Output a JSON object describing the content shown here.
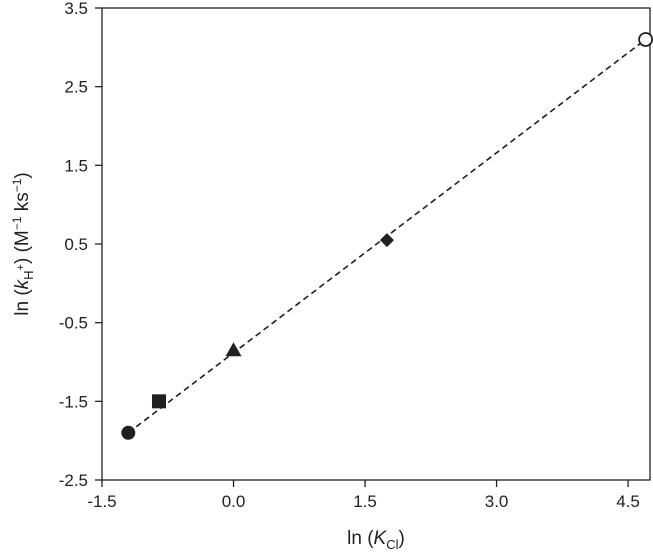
{
  "chart_data": {
    "type": "scatter",
    "title": "",
    "xlabel": {
      "prefix": "ln (",
      "var": "K",
      "sub": "Cl",
      "suffix": ")"
    },
    "ylabel": {
      "prefix": "ln (",
      "var": "k",
      "sub": "H",
      "subsup": "+",
      "mid": ") (M",
      "sup1": "−1",
      "mid2": " ks",
      "sup2": "−1",
      "suffix": ")"
    },
    "xlim": [
      -1.5,
      4.75
    ],
    "ylim": [
      -2.5,
      3.5
    ],
    "xticks": [
      -1.5,
      0.0,
      1.5,
      3.0,
      4.5
    ],
    "xtick_labels": [
      "-1.5",
      "0.0",
      "1.5",
      "3.0",
      "4.5"
    ],
    "yticks": [
      -2.5,
      -1.5,
      -0.5,
      0.5,
      1.5,
      2.5,
      3.5
    ],
    "ytick_labels": [
      "-2.5",
      "-1.5",
      "-0.5",
      "0.5",
      "1.5",
      "2.5",
      "3.5"
    ],
    "grid": false,
    "legend": "none",
    "points": [
      {
        "x": -1.2,
        "y": -1.9,
        "marker": "circle-filled"
      },
      {
        "x": -0.85,
        "y": -1.5,
        "marker": "square-filled"
      },
      {
        "x": 0.0,
        "y": -0.85,
        "marker": "triangle-filled"
      },
      {
        "x": 1.75,
        "y": 0.55,
        "marker": "diamond-filled"
      },
      {
        "x": 4.7,
        "y": 3.1,
        "marker": "circle-open"
      }
    ],
    "fit_line": {
      "style": "dashed",
      "x": [
        -1.2,
        4.7
      ],
      "y": [
        -1.9,
        3.1
      ]
    },
    "colors": {
      "ink": "#231f20",
      "background": "#ffffff"
    }
  }
}
